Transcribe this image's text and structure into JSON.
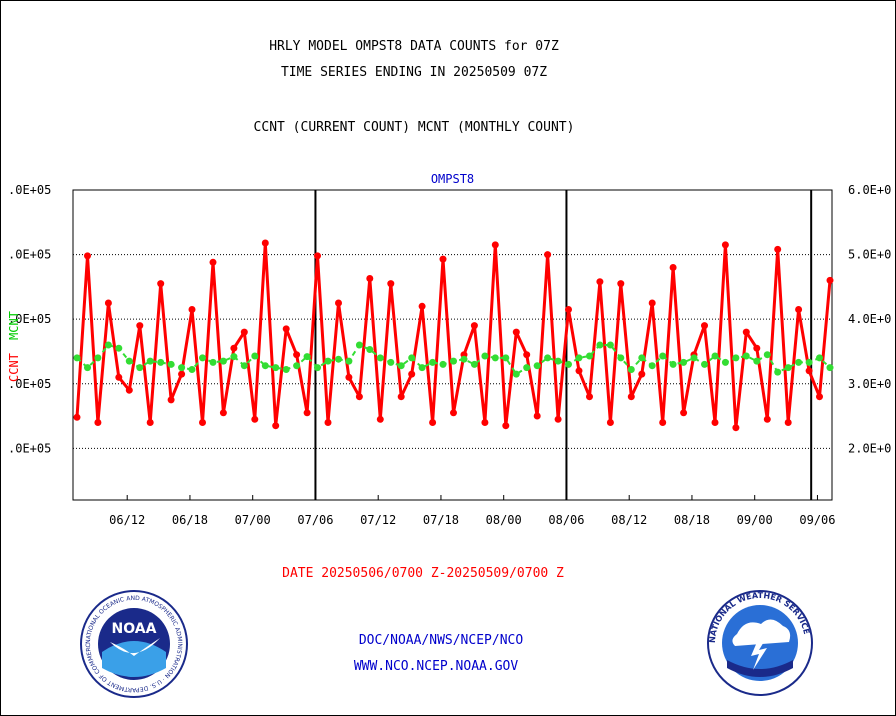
{
  "header": {
    "line1": "HRLY MODEL OMPST8 DATA COUNTS for 07Z",
    "line2": "TIME SERIES ENDING IN 20250509 07Z",
    "line3": "CCNT (CURRENT COUNT) MCNT (MONTHLY COUNT)"
  },
  "chart_data": {
    "type": "line",
    "title": "OMPST8",
    "ylabel_left": [
      "CCNT",
      "MCNT"
    ],
    "ylabel_colors": {
      "CCNT": "#ff0000",
      "MCNT": "#00cc00"
    },
    "left_ticks": [
      ".0E+05",
      ".0E+05",
      ".0E+05",
      ".0E+05",
      ".0E+05"
    ],
    "right_ticks": [
      "6.0E+0",
      "5.0E+0",
      "4.0E+0",
      "3.0E+0",
      "2.0E+0"
    ],
    "tick_values": [
      600000,
      500000,
      400000,
      300000,
      200000
    ],
    "ylim": [
      120000,
      600000
    ],
    "xlim": [
      0,
      120
    ],
    "x_ticks": [
      {
        "label": "06/12",
        "x": 8
      },
      {
        "label": "06/18",
        "x": 18
      },
      {
        "label": "07/00",
        "x": 28
      },
      {
        "label": "07/06",
        "x": 38
      },
      {
        "label": "07/12",
        "x": 48
      },
      {
        "label": "07/18",
        "x": 58
      },
      {
        "label": "08/00",
        "x": 68
      },
      {
        "label": "08/06",
        "x": 78
      },
      {
        "label": "08/12",
        "x": 88
      },
      {
        "label": "08/18",
        "x": 98
      },
      {
        "label": "09/00",
        "x": 108
      },
      {
        "label": "09/06",
        "x": 118
      }
    ],
    "day_boundaries": [
      38,
      78,
      117
    ],
    "grid": "horizontal dotted",
    "series": [
      {
        "name": "CCNT",
        "color": "#ff0000",
        "values": [
          248000,
          498000,
          240000,
          425000,
          310000,
          290000,
          390000,
          240000,
          455000,
          275000,
          315000,
          415000,
          240000,
          488000,
          255000,
          355000,
          380000,
          245000,
          518000,
          235000,
          385000,
          345000,
          255000,
          498000,
          240000,
          425000,
          310000,
          280000,
          463000,
          245000,
          455000,
          280000,
          315000,
          420000,
          240000,
          493000,
          255000,
          345000,
          390000,
          240000,
          515000,
          235000,
          380000,
          345000,
          250000,
          500000,
          245000,
          415000,
          320000,
          280000,
          458000,
          240000,
          455000,
          280000,
          315000,
          425000,
          240000,
          480000,
          255000,
          345000,
          390000,
          240000,
          515000,
          232000,
          380000,
          355000,
          245000,
          508000,
          240000,
          415000,
          320000,
          280000,
          460000
        ]
      },
      {
        "name": "MCNT",
        "color": "#33dd33",
        "values": [
          340000,
          325000,
          340000,
          360000,
          355000,
          335000,
          325000,
          335000,
          333000,
          330000,
          325000,
          322000,
          340000,
          333000,
          335000,
          342000,
          328000,
          343000,
          328000,
          325000,
          322000,
          328000,
          342000,
          325000,
          335000,
          338000,
          335000,
          360000,
          353000,
          340000,
          333000,
          328000,
          340000,
          325000,
          333000,
          330000,
          335000,
          338000,
          330000,
          343000,
          340000,
          340000,
          315000,
          325000,
          328000,
          340000,
          335000,
          330000,
          340000,
          343000,
          360000,
          360000,
          340000,
          322000,
          340000,
          328000,
          343000,
          330000,
          333000,
          340000,
          330000,
          343000,
          333000,
          340000,
          343000,
          335000,
          345000,
          318000,
          325000,
          333000,
          333000,
          340000,
          325000
        ]
      }
    ]
  },
  "footer": {
    "date_range": "DATE 20250506/0700 Z-20250509/0700 Z",
    "org": "DOC/NOAA/NWS/NCEP/NCO",
    "url": "WWW.NCO.NCEP.NOAA.GOV",
    "noaa_logo_text": "NOAA",
    "noaa_ring_text": "NATIONAL OCEANIC AND ATMOSPHERIC ADMINISTRATION · U.S. DEPARTMENT OF COMMERCE",
    "nws_ring_text": "NATIONAL WEATHER SERVICE"
  }
}
